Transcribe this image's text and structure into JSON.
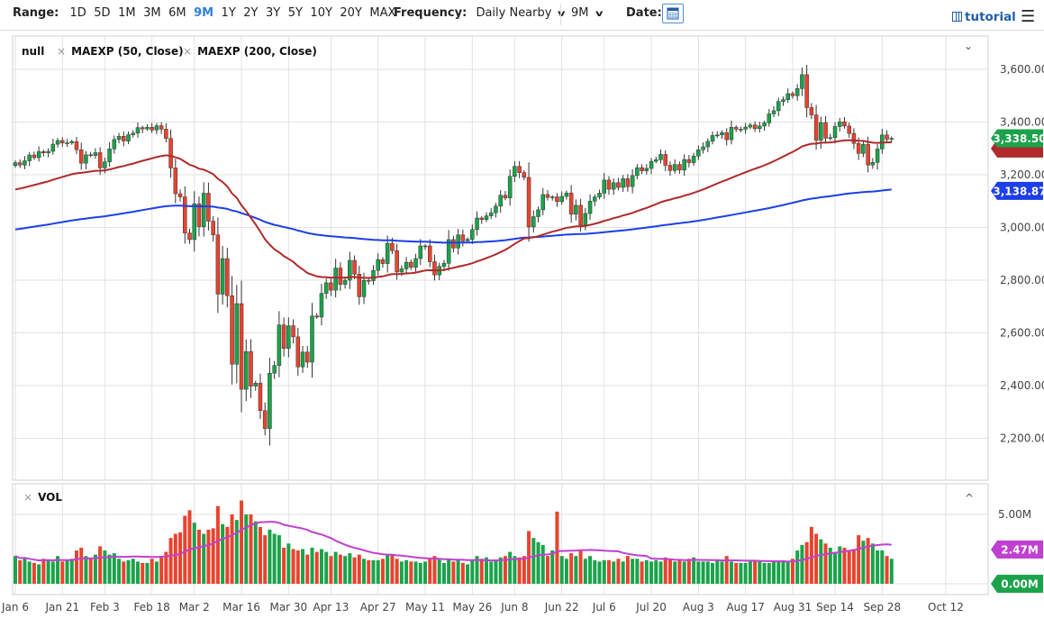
{
  "toolbar": {
    "range_label": "Range:",
    "ranges": [
      "1D",
      "5D",
      "1M",
      "3M",
      "6M",
      "9M",
      "1Y",
      "2Y",
      "3Y",
      "5Y",
      "10Y",
      "20Y",
      "MAX"
    ],
    "active_range": "9M",
    "frequency_label": "Frequency:",
    "frequency_value": "Daily Nearby",
    "period_value": "9M",
    "date_label": "Date:",
    "tutorial_label": "tutorial"
  },
  "legend": {
    "main": "null",
    "ema50": "MAEXP (50, Close)",
    "ema200": "MAEXP (200, Close)",
    "vol": "VOL",
    "remove_glyph": "×",
    "collapse_glyph": "⌄",
    "expand_glyph": "^"
  },
  "colors": {
    "up": "#1aa34a",
    "down": "#e8432e",
    "ema50": "#b02a2a",
    "ema200": "#1c3fe8",
    "volma": "#c040d0",
    "grid": "#e2e2e2"
  },
  "chart_data": {
    "type": "candlestick",
    "title": "",
    "price_ticks": [
      "3,600.00",
      "3,400.00",
      "3,200.00",
      "3,000.00",
      "2,800.00",
      "2,600.00",
      "2,400.00",
      "2,200.00"
    ],
    "price_tick_values": [
      3600,
      3400,
      3200,
      3000,
      2800,
      2600,
      2400,
      2200
    ],
    "ylim": [
      2140,
      3700
    ],
    "x_ticks": [
      {
        "label": "Jan 6",
        "i": 0
      },
      {
        "label": "Jan 21",
        "i": 10
      },
      {
        "label": "Feb 3",
        "i": 19
      },
      {
        "label": "Feb 18",
        "i": 29
      },
      {
        "label": "Mar 2",
        "i": 38
      },
      {
        "label": "Mar 16",
        "i": 48
      },
      {
        "label": "Mar 30",
        "i": 58
      },
      {
        "label": "Apr 13",
        "i": 67
      },
      {
        "label": "Apr 27",
        "i": 77
      },
      {
        "label": "May 11",
        "i": 87
      },
      {
        "label": "May 26",
        "i": 97
      },
      {
        "label": "Jun 8",
        "i": 106
      },
      {
        "label": "Jun 22",
        "i": 116
      },
      {
        "label": "Jul 6",
        "i": 125
      },
      {
        "label": "Jul 20",
        "i": 135
      },
      {
        "label": "Aug 3",
        "i": 145
      },
      {
        "label": "Aug 17",
        "i": 155
      },
      {
        "label": "Aug 31",
        "i": 165
      },
      {
        "label": "Sep 14",
        "i": 174
      },
      {
        "label": "Sep 28",
        "i": 184
      },
      {
        "label": "Oct 12",
        "i": 197.5
      }
    ],
    "first_open": 3235,
    "closes": [
      3246,
      3237,
      3253,
      3275,
      3265,
      3288,
      3283,
      3289,
      3316,
      3330,
      3321,
      3321,
      3326,
      3295,
      3244,
      3276,
      3273,
      3284,
      3226,
      3249,
      3298,
      3334,
      3346,
      3328,
      3352,
      3358,
      3379,
      3374,
      3380,
      3370,
      3386,
      3373,
      3338,
      3226,
      3128,
      3116,
      2979,
      2954,
      3090,
      3003,
      3130,
      3024,
      2972,
      2747,
      2882,
      2741,
      2481,
      2711,
      2386,
      2529,
      2398,
      2409,
      2305,
      2237,
      2447,
      2476,
      2630,
      2541,
      2627,
      2585,
      2471,
      2527,
      2489,
      2664,
      2660,
      2750,
      2790,
      2762,
      2846,
      2784,
      2800,
      2875,
      2823,
      2737,
      2799,
      2798,
      2837,
      2878,
      2863,
      2940,
      2912,
      2831,
      2843,
      2868,
      2849,
      2882,
      2930,
      2930,
      2870,
      2820,
      2852,
      2864,
      2954,
      2922,
      2972,
      2949,
      2955,
      2992,
      3036,
      3030,
      3044,
      3056,
      3081,
      3122,
      3112,
      3194,
      3232,
      3208,
      3190,
      3002,
      3041,
      3067,
      3125,
      3114,
      3116,
      3098,
      3118,
      3131,
      3050,
      3084,
      3009,
      3053,
      3100,
      3116,
      3130,
      3180,
      3145,
      3170,
      3152,
      3185,
      3155,
      3197,
      3227,
      3215,
      3224,
      3251,
      3257,
      3277,
      3236,
      3216,
      3239,
      3218,
      3258,
      3246,
      3271,
      3295,
      3306,
      3327,
      3349,
      3351,
      3360,
      3333,
      3380,
      3373,
      3373,
      3381,
      3389,
      3375,
      3385,
      3397,
      3431,
      3443,
      3478,
      3485,
      3508,
      3500,
      3527,
      3580,
      3455,
      3427,
      3331,
      3398,
      3339,
      3341,
      3383,
      3401,
      3385,
      3357,
      3319,
      3281,
      3315,
      3237,
      3247,
      3298,
      3351,
      3335,
      3338.5
    ],
    "volumes_millions": [
      2.0,
      1.7,
      1.9,
      1.6,
      1.5,
      1.4,
      1.8,
      1.7,
      1.6,
      2.0,
      1.6,
      1.7,
      1.8,
      2.4,
      2.6,
      2.0,
      1.8,
      2.1,
      2.7,
      2.4,
      2.1,
      2.2,
      1.8,
      1.6,
      1.7,
      1.8,
      1.6,
      1.5,
      1.5,
      1.8,
      1.6,
      2.0,
      2.3,
      3.3,
      3.6,
      3.7,
      4.9,
      5.3,
      4.4,
      3.9,
      3.6,
      3.9,
      4.0,
      5.6,
      4.3,
      4.1,
      5.0,
      4.6,
      6.0,
      5.0,
      5.0,
      4.5,
      4.1,
      3.5,
      3.9,
      3.6,
      3.5,
      2.6,
      2.9,
      2.5,
      2.4,
      2.5,
      2.1,
      2.6,
      2.3,
      2.5,
      2.3,
      2.0,
      2.3,
      2.1,
      2.0,
      2.2,
      1.9,
      2.1,
      1.8,
      1.7,
      1.7,
      1.7,
      1.8,
      2.1,
      2.1,
      1.8,
      1.6,
      1.7,
      1.6,
      1.6,
      1.5,
      1.6,
      1.8,
      2.0,
      1.8,
      1.5,
      1.8,
      1.6,
      1.7,
      1.5,
      1.4,
      1.7,
      2.0,
      1.8,
      1.9,
      1.6,
      1.7,
      1.9,
      2.0,
      2.3,
      2.0,
      1.9,
      2.0,
      3.8,
      3.3,
      3.0,
      2.8,
      2.0,
      2.4,
      5.2,
      2.0,
      1.8,
      2.2,
      2.0,
      2.4,
      1.8,
      2.0,
      1.7,
      1.6,
      1.7,
      1.7,
      1.6,
      1.8,
      1.6,
      2.0,
      1.8,
      1.8,
      1.6,
      1.7,
      1.6,
      1.7,
      1.6,
      1.9,
      1.8,
      1.6,
      1.7,
      1.6,
      1.8,
      1.9,
      1.6,
      1.6,
      1.6,
      1.5,
      1.7,
      1.6,
      2.0,
      1.6,
      1.5,
      1.5,
      1.5,
      1.6,
      1.7,
      1.6,
      1.5,
      1.5,
      1.6,
      1.6,
      1.7,
      1.6,
      1.8,
      2.4,
      2.8,
      3.0,
      4.1,
      3.6,
      3.2,
      2.9,
      2.6,
      2.3,
      2.7,
      2.6,
      2.4,
      2.5,
      3.5,
      3.1,
      3.3,
      2.9,
      2.4,
      2.4,
      2.0,
      1.8
    ],
    "ema_seed": {
      "ema50": 3140,
      "ema200": 2990
    },
    "vol_ma_period": 20,
    "vol_ylim": [
      0,
      6.5
    ],
    "last_price_label": "3,338.50",
    "ema200_label": "3,138.87",
    "vol_ticks": [
      "5.00M"
    ],
    "vol_ma_label": "2.47M",
    "vol_zero_label": "0.00M"
  }
}
